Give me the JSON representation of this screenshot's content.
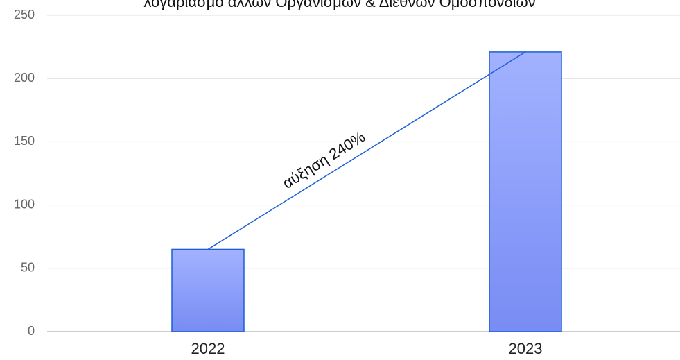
{
  "chart_data": {
    "type": "bar",
    "title": "λογαριασμό άλλων Οργανισμών & Διεθνών Ομοσπονδιών",
    "categories": [
      "2022",
      "2023"
    ],
    "values": [
      65,
      221
    ],
    "color": "#8a9cf8",
    "ylim": [
      0,
      250
    ],
    "yticks": [
      0,
      50,
      100,
      150,
      200,
      250
    ],
    "grid": true,
    "annotations": [
      "αύξηση 240%"
    ]
  }
}
